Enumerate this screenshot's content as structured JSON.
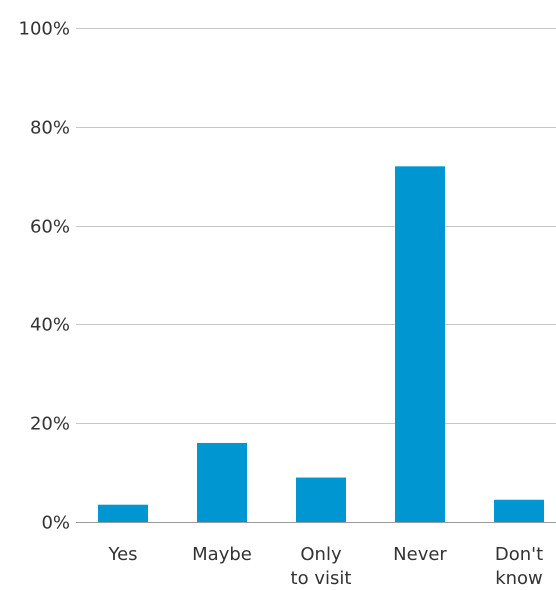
{
  "chart_data": {
    "type": "bar",
    "categories": [
      [
        "Yes"
      ],
      [
        "Maybe"
      ],
      [
        "Only",
        "to visit"
      ],
      [
        "Never"
      ],
      [
        "Don't",
        "know"
      ]
    ],
    "values": [
      3.5,
      16,
      9,
      72,
      4.5
    ],
    "ylim": [
      0,
      100
    ],
    "yticks": [
      0,
      20,
      40,
      60,
      80,
      100
    ],
    "ytick_labels": [
      "0%",
      "20%",
      "40%",
      "60%",
      "80%",
      "100%"
    ],
    "grid": true,
    "legend": "none",
    "colors": {
      "bar": "#0096d2"
    }
  }
}
